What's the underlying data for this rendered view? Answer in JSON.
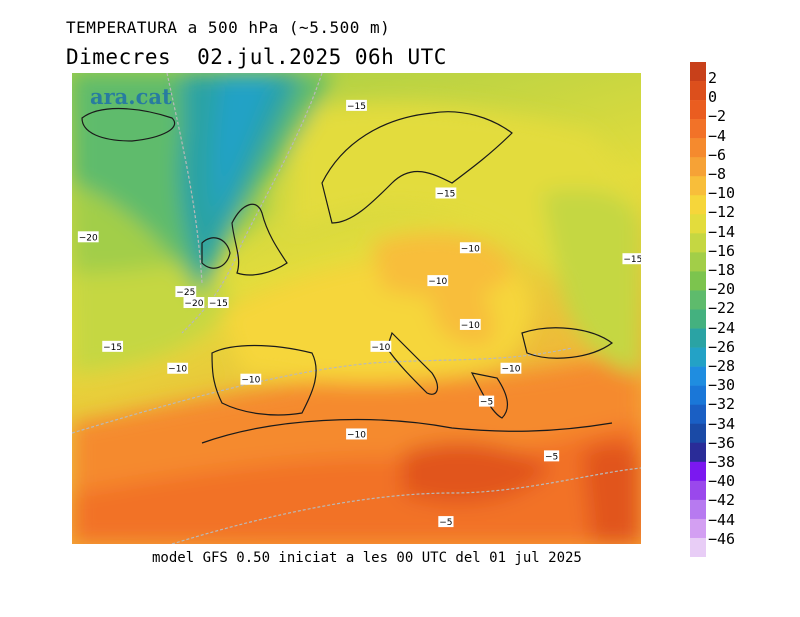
{
  "header": {
    "title": "TEMPERATURA a 500 hPa (~5.500 m)",
    "day": "Dimecres",
    "datetime": "02.jul.2025 06h UTC"
  },
  "logo": {
    "text": "ara.cat"
  },
  "footer": {
    "text": "model GFS 0.50 iniciat a les 00 UTC del 01 jul 2025"
  },
  "legend": {
    "labels": [
      "2",
      "0",
      "−2",
      "−4",
      "−6",
      "−8",
      "−10",
      "−12",
      "−14",
      "−16",
      "−18",
      "−20",
      "−22",
      "−24",
      "−26",
      "−28",
      "−30",
      "−32",
      "−34",
      "−36",
      "−38",
      "−40",
      "−42",
      "−44",
      "−46"
    ],
    "colors": [
      "#c8401a",
      "#dc4f1c",
      "#ea5d20",
      "#f27228",
      "#f58a2e",
      "#f6a236",
      "#f8be3a",
      "#f6d63a",
      "#e3dc3c",
      "#c5d742",
      "#a2ce48",
      "#7cc44e",
      "#5ebb6c",
      "#44b17f",
      "#2aa3a4",
      "#23a2c6",
      "#1f8de0",
      "#1a77d8",
      "#1a5fc4",
      "#1a4aa6",
      "#2a2c98",
      "#7b18f0",
      "#9a48ec",
      "#b77af0",
      "#d39ff2",
      "#e8cdf6"
    ]
  },
  "map": {
    "colors": {
      "warm_dark": "#e1541c",
      "warm": "#f27228",
      "orange": "#f58a2e",
      "amber": "#f6a236",
      "yellow_orange": "#f8be3a",
      "yellow": "#f6d63a",
      "yellow_green": "#e3dc3c",
      "lime": "#c5d742",
      "green": "#a2ce48",
      "teal": "#5ebb6c",
      "cyan": "#2aa3a4",
      "sky": "#23a2c6"
    },
    "contour_labels": [
      {
        "text": "−15",
        "lon": 10,
        "lat": 67
      },
      {
        "text": "−15",
        "lon": 21,
        "lat": 59
      },
      {
        "text": "−15",
        "lon": 44,
        "lat": 53
      },
      {
        "text": "−10",
        "lon": 24,
        "lat": 54
      },
      {
        "text": "−10",
        "lon": 20,
        "lat": 51
      },
      {
        "text": "−10",
        "lon": 24,
        "lat": 47
      },
      {
        "text": "−10",
        "lon": 13,
        "lat": 45
      },
      {
        "text": "−10",
        "lon": 29,
        "lat": 43
      },
      {
        "text": "−20",
        "lon": -23,
        "lat": 55
      },
      {
        "text": "−25",
        "lon": -11,
        "lat": 50
      },
      {
        "text": "−20",
        "lon": -10,
        "lat": 49
      },
      {
        "text": "−15",
        "lon": -7,
        "lat": 49
      },
      {
        "text": "−15",
        "lon": -20,
        "lat": 45
      },
      {
        "text": "−10",
        "lon": -12,
        "lat": 43
      },
      {
        "text": "−10",
        "lon": -3,
        "lat": 42
      },
      {
        "text": "−10",
        "lon": 10,
        "lat": 37
      },
      {
        "text": "−5",
        "lon": 26,
        "lat": 40
      },
      {
        "text": "−5",
        "lon": 34,
        "lat": 35
      },
      {
        "text": "−5",
        "lon": 21,
        "lat": 29
      }
    ]
  }
}
